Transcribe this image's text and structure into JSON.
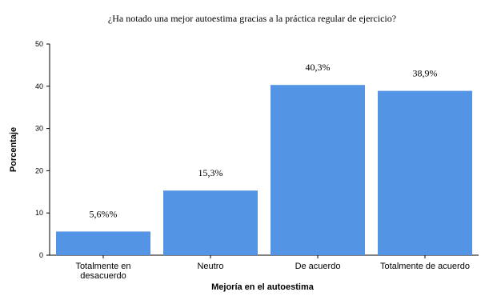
{
  "chart_data": {
    "type": "bar",
    "title": "¿Ha notado una mejor autoestima gracias a la práctica regular de ejercicio?",
    "xlabel": "Mejoría en el autoestima",
    "ylabel": "Porcentaje",
    "ylim": [
      0,
      50
    ],
    "yticks": [
      "0",
      "10",
      "20",
      "30",
      "40",
      "50"
    ],
    "categories": [
      [
        "Totalmente en",
        "desacuerdo"
      ],
      [
        "Neutro"
      ],
      [
        "De acuerdo"
      ],
      [
        "Totalmente de acuerdo"
      ]
    ],
    "values": [
      5.6,
      15.3,
      40.3,
      38.9
    ],
    "data_labels": [
      "5,6%%",
      "15,3%",
      "40,3%",
      "38,9%"
    ],
    "bar_color": "#5394E5",
    "grid": false
  }
}
